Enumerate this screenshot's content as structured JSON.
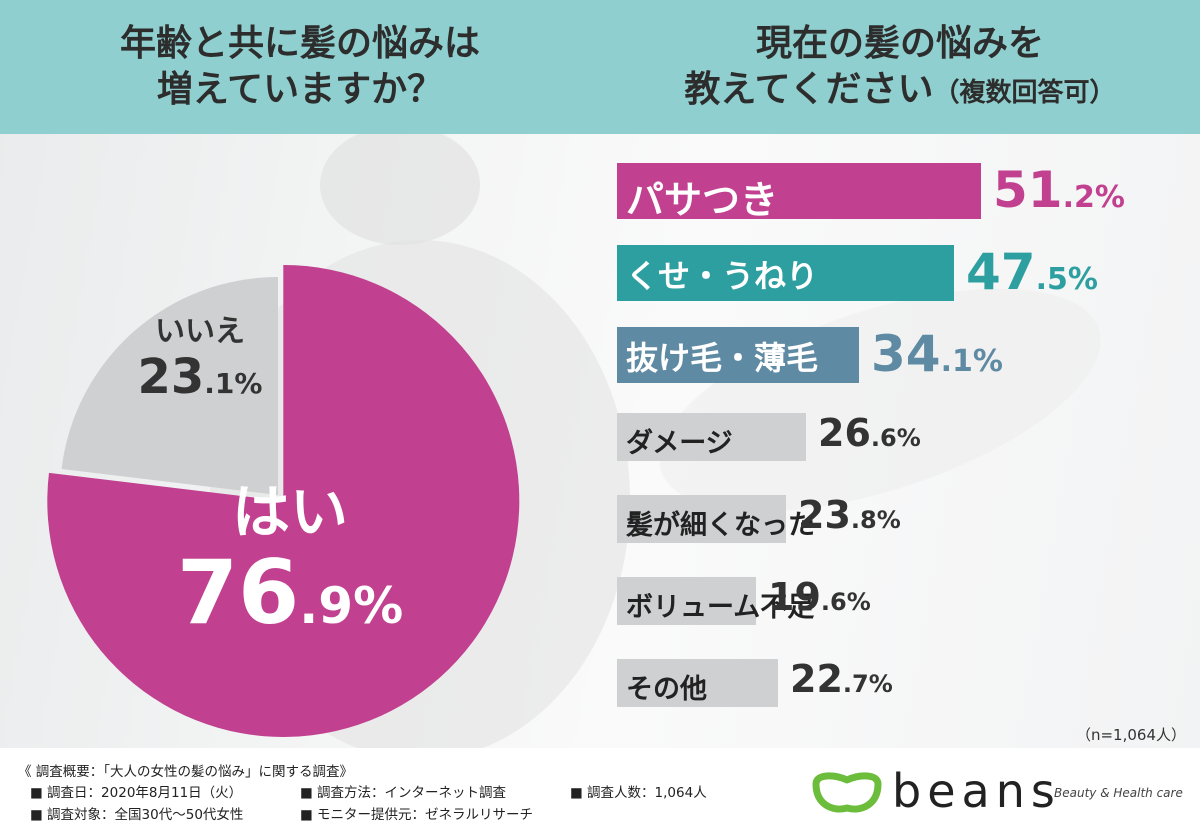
{
  "header": {
    "left_title_line1": "年齢と共に髪の悩みは",
    "left_title_line2": "増えていますか？",
    "right_title_line1": "現在の髪の悩みを",
    "right_title_line2": "教えてください",
    "right_title_note": "（複数回答可）"
  },
  "colors": {
    "header_bg": "#8fcfcf",
    "magenta": "#c1408f",
    "teal": "#2e9fa0",
    "slate": "#5e8aa3",
    "gray": "#cfd0d1",
    "text": "#333333"
  },
  "chart_data": [
    {
      "type": "pie",
      "title": "年齢と共に髪の悩みは増えていますか？",
      "slices": [
        {
          "label": "はい",
          "value": 76.9,
          "int": "76",
          "dec": ".9%",
          "color": "#c1408f"
        },
        {
          "label": "いいえ",
          "value": 23.1,
          "int": "23",
          "dec": ".1%",
          "color": "#cfd0d1"
        }
      ]
    },
    {
      "type": "bar",
      "title": "現在の髪の悩みを教えてください（複数回答可）",
      "categories": [
        "パサつき",
        "くせ・うねり",
        "抜け毛・薄毛",
        "ダメージ",
        "髪が細くなった",
        "ボリューム不足",
        "その他"
      ],
      "values": [
        51.2,
        47.5,
        34.1,
        26.6,
        23.8,
        19.6,
        22.7
      ],
      "value_int": [
        "51",
        "47",
        "34",
        "26",
        "23",
        "19",
        "22"
      ],
      "value_dec": [
        ".2%",
        ".5%",
        ".1%",
        ".6%",
        ".8%",
        ".6%",
        ".7%"
      ],
      "bar_colors": [
        "#c1408f",
        "#2e9fa0",
        "#5e8aa3",
        "#cfd0d1",
        "#cfd0d1",
        "#cfd0d1",
        "#cfd0d1"
      ],
      "n_note": "（n=1,064人）"
    }
  ],
  "footer": {
    "summary": "《 調査概要：「大人の女性の髪の悩み」に関する調査》",
    "date": "■ 調査日：2020年8月11日（火）",
    "method": "■ 調査方法：インターネット調査",
    "count": "■ 調査人数：1,064人",
    "target": "■ 調査対象：全国30代〜50代女性",
    "provider": "■ モニター提供元：ゼネラルリサーチ",
    "brand_name": "beans",
    "brand_tagline": "Beauty & Health care"
  }
}
